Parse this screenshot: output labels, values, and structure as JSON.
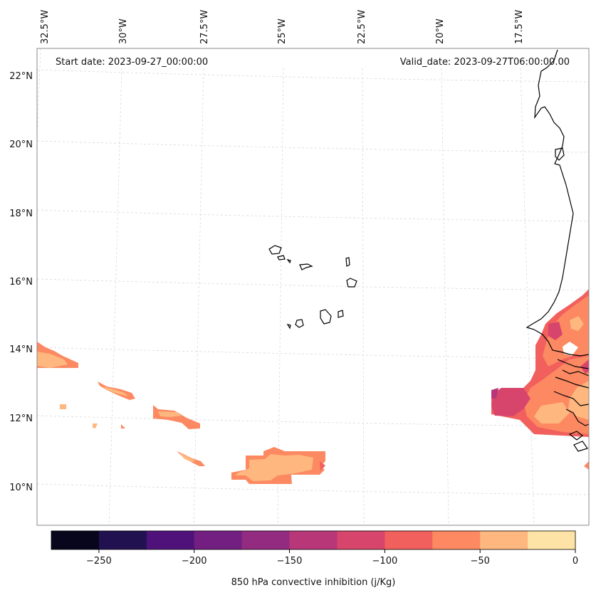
{
  "header": {
    "start_date": "Start date: 2023-09-27_00:00:00",
    "valid_date": "Valid_date: 2023-09-27T06:00:00.00"
  },
  "map": {
    "lon_labels": [
      "32.5°W",
      "30°W",
      "27.5°W",
      "25°W",
      "22.5°W",
      "20°W",
      "17.5°W"
    ],
    "lat_labels": [
      "22°N",
      "20°N",
      "18°N",
      "16°N",
      "14°N",
      "12°N",
      "10°N"
    ],
    "gridlines": true,
    "coastlines": true
  },
  "colorbar": {
    "label": "850 hPa convective inhibition (j/Kg)",
    "ticks": [
      "−250",
      "−200",
      "−150",
      "−100",
      "−50",
      "0"
    ],
    "bins": [
      -275,
      -250,
      -225,
      -200,
      -175,
      -150,
      -125,
      -100,
      -75,
      -50,
      -25,
      0
    ],
    "colors": [
      "#07061c",
      "#221150",
      "#4f127b",
      "#721f81",
      "#932b80",
      "#b73779",
      "#d8456c",
      "#f1605d",
      "#fc8961",
      "#feb77e",
      "#fde3a5"
    ]
  }
}
